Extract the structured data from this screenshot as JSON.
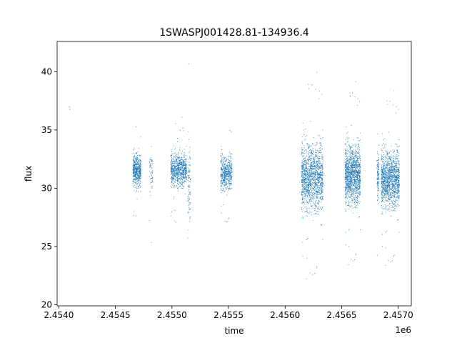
{
  "chart_data": {
    "type": "scatter",
    "title": "1SWASPJ001428.81-134936.4",
    "xlabel": "time",
    "ylabel": "flux",
    "x_offset_label": "1e6",
    "x_scale_factor": 1000000,
    "xlim": [
      2453985,
      2457115
    ],
    "ylim": [
      19.9,
      42.6
    ],
    "xticks": [
      2454000,
      2454500,
      2455000,
      2455500,
      2456000,
      2456500,
      2457000
    ],
    "xtick_labels": [
      "2.4540",
      "2.4545",
      "2.4550",
      "2.4555",
      "2.4560",
      "2.4565",
      "2.4570"
    ],
    "yticks": [
      20,
      25,
      30,
      35,
      40
    ],
    "ytick_labels": [
      "20",
      "25",
      "30",
      "35",
      "40"
    ],
    "grid": false,
    "marker_color": "#1f77b4",
    "series": [
      {
        "clusters": [
          {
            "x_range": [
              2454090,
              2454100
            ],
            "y_center": 36.5,
            "y_spread": 0.8,
            "n": 4
          },
          {
            "x_range": [
              2454655,
              2454725
            ],
            "y_center": 31.5,
            "y_spread": 1.2,
            "n": 520
          },
          {
            "x_range": [
              2454800,
              2454830
            ],
            "y_center": 31.6,
            "y_spread": 1.8,
            "n": 60
          },
          {
            "x_range": [
              2454990,
              2455130
            ],
            "y_center": 31.6,
            "y_spread": 1.3,
            "n": 760
          },
          {
            "x_range": [
              2455140,
              2455165
            ],
            "y_center": 30.5,
            "y_spread": 3.5,
            "n": 90
          },
          {
            "x_range": [
              2455430,
              2455530
            ],
            "y_center": 31.3,
            "y_spread": 1.3,
            "n": 520
          },
          {
            "x_range": [
              2456145,
              2456335
            ],
            "y_center": 31.0,
            "y_spread": 2.6,
            "n": 1500
          },
          {
            "x_range": [
              2456530,
              2456665
            ],
            "y_center": 31.2,
            "y_spread": 2.3,
            "n": 1300
          },
          {
            "x_range": [
              2456810,
              2456830
            ],
            "y_center": 31.0,
            "y_spread": 2.0,
            "n": 120
          },
          {
            "x_range": [
              2456850,
              2457010
            ],
            "y_center": 30.8,
            "y_spread": 2.2,
            "n": 1300
          }
        ]
      }
    ]
  }
}
